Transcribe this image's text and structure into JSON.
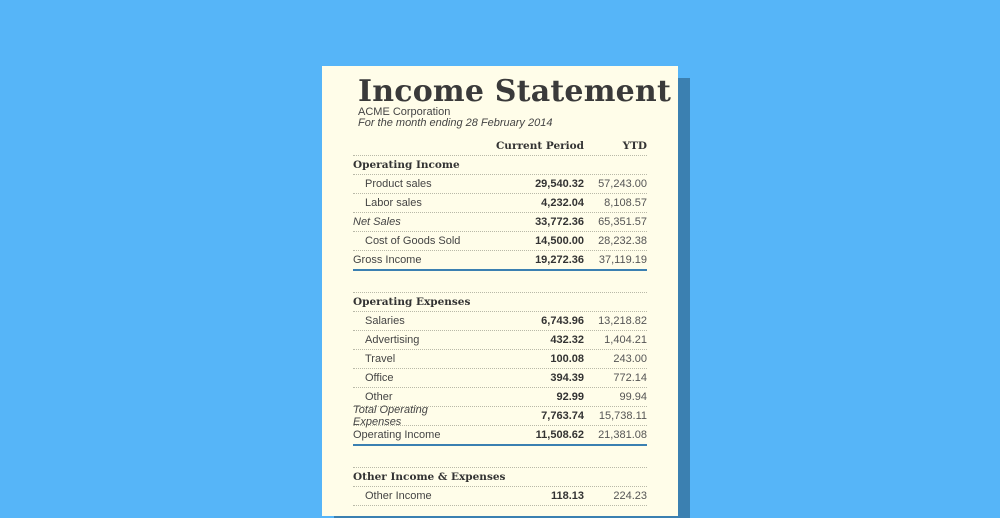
{
  "document": {
    "title": "Income Statement",
    "company": "ACME Corporation",
    "period": "For the month ending 28 February 2014",
    "columns": {
      "current": "Current Period",
      "ytd": "YTD"
    },
    "sections": [
      {
        "heading": "Operating Income",
        "rows": [
          {
            "label": "Product sales",
            "current": "29,540.32",
            "ytd": "57,243.00",
            "type": "item"
          },
          {
            "label": "Labor sales",
            "current": "4,232.04",
            "ytd": "8,108.57",
            "type": "item"
          },
          {
            "label": "Net Sales",
            "current": "33,772.36",
            "ytd": "65,351.57",
            "type": "sub"
          },
          {
            "label": "Cost of Goods Sold",
            "current": "14,500.00",
            "ytd": "28,232.38",
            "type": "item"
          },
          {
            "label": "Gross Income",
            "current": "19,272.36",
            "ytd": "37,119.19",
            "type": "total"
          }
        ]
      },
      {
        "heading": "Operating Expenses",
        "rows": [
          {
            "label": "Salaries",
            "current": "6,743.96",
            "ytd": "13,218.82",
            "type": "item"
          },
          {
            "label": "Advertising",
            "current": "432.32",
            "ytd": "1,404.21",
            "type": "item"
          },
          {
            "label": "Travel",
            "current": "100.08",
            "ytd": "243.00",
            "type": "item"
          },
          {
            "label": "Office",
            "current": "394.39",
            "ytd": "772.14",
            "type": "item"
          },
          {
            "label": "Other",
            "current": "92.99",
            "ytd": "99.94",
            "type": "item"
          },
          {
            "label": "Total Operating Expenses",
            "current": "7,763.74",
            "ytd": "15,738.11",
            "type": "sub"
          },
          {
            "label": "Operating Income",
            "current": "11,508.62",
            "ytd": "21,381.08",
            "type": "total"
          }
        ]
      },
      {
        "heading": "Other Income & Expenses",
        "rows": [
          {
            "label": "Other Income",
            "current": "118.13",
            "ytd": "224.23",
            "type": "item"
          }
        ]
      }
    ]
  },
  "colors": {
    "background": "#56b5f8",
    "paper": "#fffde9",
    "accent": "#3b80b1"
  }
}
